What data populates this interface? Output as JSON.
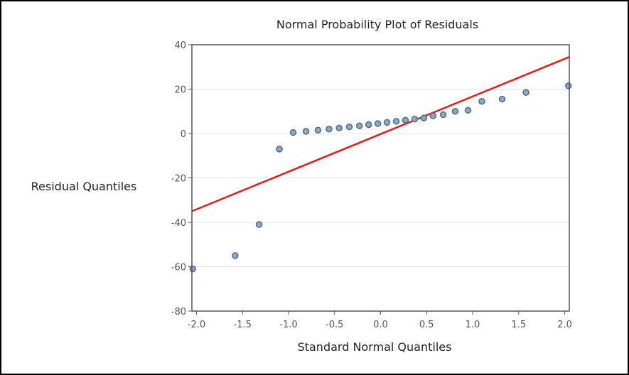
{
  "chart_data": {
    "type": "scatter",
    "title": "Normal Probability Plot of Residuals",
    "xlabel": "Standard Normal Quantiles",
    "ylabel": "Residual Quantiles",
    "xlim": [
      -2.05,
      2.05
    ],
    "ylim": [
      -80,
      40
    ],
    "xticks": [
      -2.0,
      -1.5,
      -1.0,
      -0.5,
      0.0,
      0.5,
      1.0,
      1.5,
      2.0
    ],
    "xtick_labels": [
      "-2.0",
      "-1.5",
      "-1.0",
      "-0.5",
      "0.0",
      "0.5",
      "1.0",
      "1.5",
      "2.0"
    ],
    "yticks": [
      -80,
      -60,
      -40,
      -20,
      0,
      20,
      40
    ],
    "ytick_labels": [
      "-80",
      "-60",
      "-40",
      "-20",
      "0",
      "20",
      "40"
    ],
    "grid": "horizontal",
    "points": {
      "x": [
        -2.04,
        -1.58,
        -1.32,
        -1.1,
        -0.95,
        -0.81,
        -0.68,
        -0.56,
        -0.45,
        -0.34,
        -0.23,
        -0.13,
        -0.03,
        0.07,
        0.17,
        0.27,
        0.37,
        0.47,
        0.57,
        0.68,
        0.81,
        0.95,
        1.1,
        1.32,
        1.58,
        2.04
      ],
      "y": [
        -61,
        -55,
        -41,
        -7,
        0.5,
        1,
        1.5,
        2,
        2.5,
        3,
        3.5,
        4,
        4.5,
        5,
        5.5,
        6,
        6.5,
        7,
        8,
        8.5,
        10,
        10.5,
        14.5,
        15.5,
        18.5,
        21.5
      ]
    },
    "reference_line": {
      "x": [
        -2.05,
        2.05
      ],
      "y": [
        -35,
        34.5
      ]
    },
    "colors": {
      "points_fill": "#8fa8bf",
      "points_stroke": "#4d6b87",
      "line": "#e31b1b",
      "grid": "#e3e3e3",
      "axis": "#555555"
    }
  }
}
